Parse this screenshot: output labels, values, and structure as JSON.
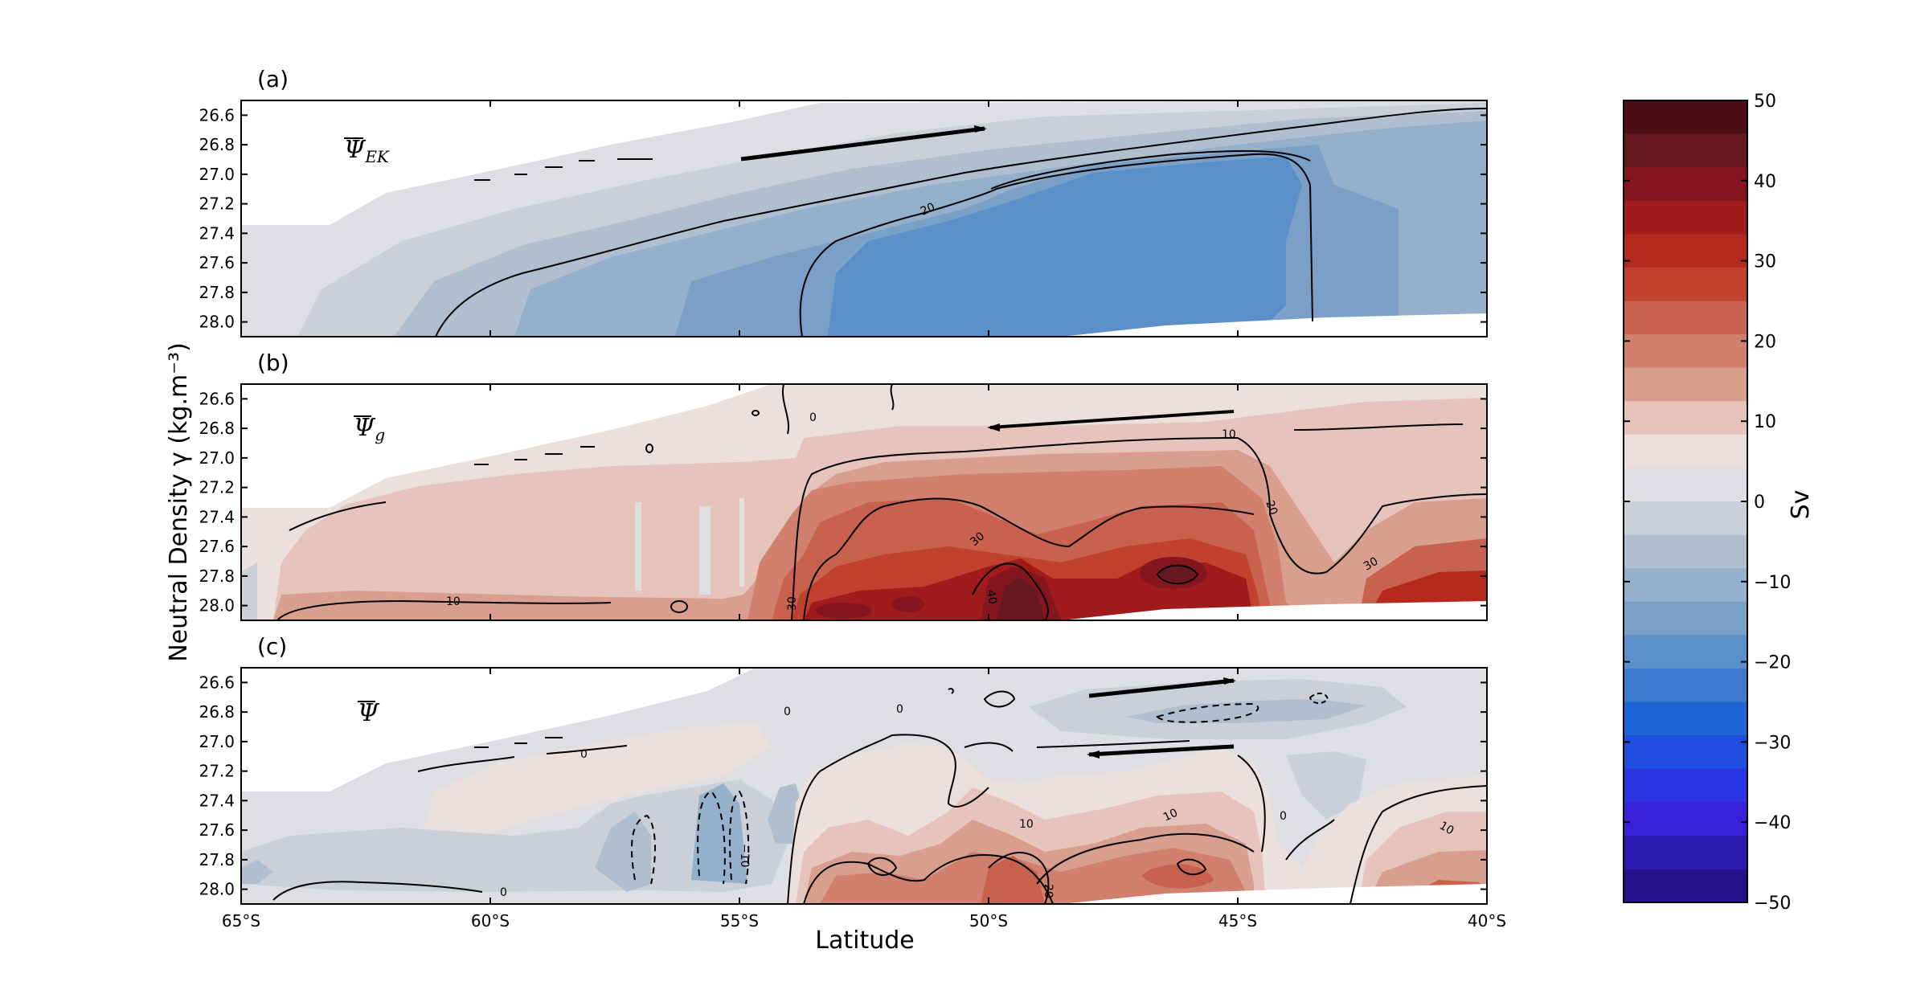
{
  "chart_data": {
    "type": "heatmap",
    "xlabel": "Latitude",
    "ylabel": "Neutral Density γ (kg.m⁻³)",
    "x_ticks": [
      "65°S",
      "60°S",
      "55°S",
      "50°S",
      "45°S",
      "40°S"
    ],
    "x_tick_values": [
      -65,
      -60,
      -55,
      -50,
      -45,
      -40
    ],
    "xlim": [
      -65,
      -40
    ],
    "y_ticks": [
      "26.6",
      "26.8",
      "27.0",
      "27.2",
      "27.4",
      "27.6",
      "27.8",
      "28.0"
    ],
    "y_tick_values": [
      26.6,
      26.8,
      27.0,
      27.2,
      27.4,
      27.6,
      27.8,
      28.0
    ],
    "ylim": [
      26.5,
      28.1
    ],
    "y_inverted": true,
    "colorbar": {
      "label": "Sv",
      "min": -50,
      "max": 50,
      "step": 5,
      "tick_labels": [
        "50",
        "40",
        "30",
        "20",
        "10",
        "0",
        "−10",
        "−20",
        "−30",
        "−40",
        "−50"
      ],
      "tick_values": [
        50,
        40,
        30,
        20,
        10,
        0,
        -10,
        -20,
        -30,
        -40,
        -50
      ],
      "colors": [
        "#4a0f16",
        "#681920",
        "#85161f",
        "#a01b1c",
        "#b52a1e",
        "#c1412f",
        "#c8614d",
        "#d0806c",
        "#d99f8e",
        "#e7c4bb",
        "#ece0de",
        "#dedfe2",
        "#cacfd8",
        "#b0bfcf",
        "#95b0cb",
        "#7aa0c8",
        "#5b8fca",
        "#3d7acd",
        "#1e64d2",
        "#1f4ee0",
        "#2c33e3",
        "#3a20d8",
        "#2f1ab0",
        "#23128b"
      ]
    },
    "panels": [
      {
        "label": "(a)",
        "symbol": "Ψ",
        "subscript": "EK",
        "contour_labels": [
          "20"
        ],
        "arrows": [
          {
            "from": [
              -55,
              26.9
            ],
            "to": [
              -50,
              26.7
            ]
          }
        ],
        "approx_values": [
          {
            "region": "north of 55°S, 27.0–28.0",
            "value": -25
          },
          {
            "region": "45°S–40°S",
            "value": -15
          },
          {
            "region": "light surface band",
            "value": -5
          }
        ]
      },
      {
        "label": "(b)",
        "symbol": "Ψ",
        "subscript": "g",
        "contour_labels": [
          "0",
          "10",
          "20",
          "30",
          "30",
          "30",
          "40",
          "10"
        ],
        "arrows": [
          {
            "from": [
              -45,
              26.7
            ],
            "to": [
              -50,
              26.8
            ]
          }
        ],
        "approx_values": [
          {
            "region": "53°S–45°S, 27.4–28.0",
            "value": 30
          },
          {
            "region": "50°S–48°S, 27.8–28.0",
            "value": 45
          },
          {
            "region": "south of 55°S",
            "value": 5
          }
        ]
      },
      {
        "label": "(c)",
        "symbol": "Ψ",
        "subscript": "",
        "contour_labels": [
          "0",
          "0",
          "0",
          "0",
          "0",
          "−10",
          "10",
          "10",
          "10",
          "20",
          "0"
        ],
        "arrows": [
          {
            "from": [
              -48,
              26.7
            ],
            "to": [
              -45,
              26.6
            ]
          },
          {
            "from": [
              -45,
              27.05
            ],
            "to": [
              -48,
              27.1
            ]
          }
        ],
        "approx_values": [
          {
            "region": "51°S–49°S, 27.8–28.0",
            "value": 20
          },
          {
            "region": "57°S–55°S, 27.4–28.0",
            "value": -10
          },
          {
            "region": "45°S–42°S, 26.7–26.9",
            "value": -10
          }
        ]
      }
    ]
  }
}
